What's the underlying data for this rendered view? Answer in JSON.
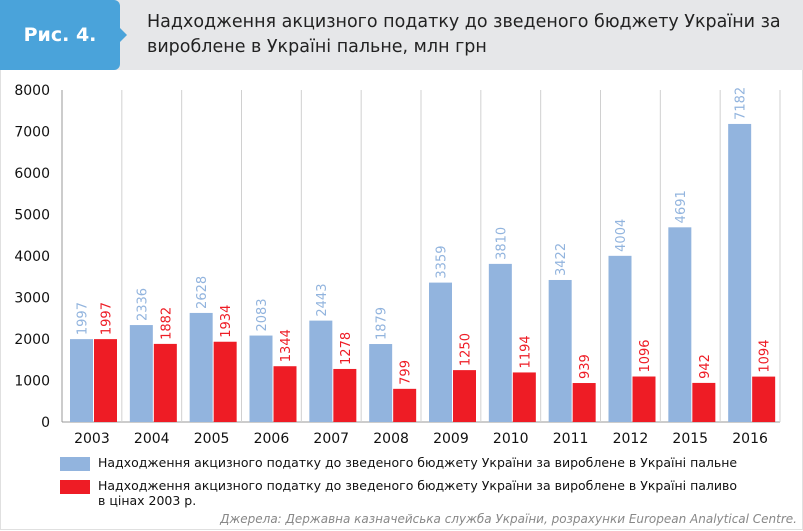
{
  "header": {
    "badge": "Рис. 4.",
    "title": "Надходження акцизного податку до зведеного бюджету України за вироблене в Україні пальне, млн грн"
  },
  "chart_data": {
    "type": "bar",
    "title": "Надходження акцизного податку до зведеного бюджету України за вироблене в Україні пальне, млн грн",
    "categories": [
      "2003",
      "2004",
      "2005",
      "2006",
      "2007",
      "2008",
      "2009",
      "2010",
      "2011",
      "2012",
      "2015",
      "2016"
    ],
    "series": [
      {
        "name": "Надходження акцизного податку до зведеного бюджету України за вироблене в Україні пальне",
        "color": "#92b4de",
        "label_color": "#92b4de",
        "values": [
          1997,
          2336,
          2628,
          2083,
          2443,
          1879,
          3359,
          3810,
          3422,
          4004,
          4691,
          7182
        ]
      },
      {
        "name": "Надходження акцизного податку до зведеного бюджету України за вироблене в Україні паливо в цінах 2003 р.",
        "color": "#ee1c25",
        "label_color": "#ee1c25",
        "values": [
          1997,
          1882,
          1934,
          1344,
          1278,
          799,
          1250,
          1194,
          939,
          1096,
          942,
          1094
        ]
      }
    ],
    "yticks": [
      "0",
      "1000",
      "2000",
      "3000",
      "4000",
      "5000",
      "6000",
      "7000",
      "8000"
    ],
    "ylim": [
      0,
      8000
    ],
    "grid": "vertical separators",
    "legend": "bottom"
  },
  "source": "Джерела: Державна казначейська служба України, розрахунки European Analytical Centre."
}
